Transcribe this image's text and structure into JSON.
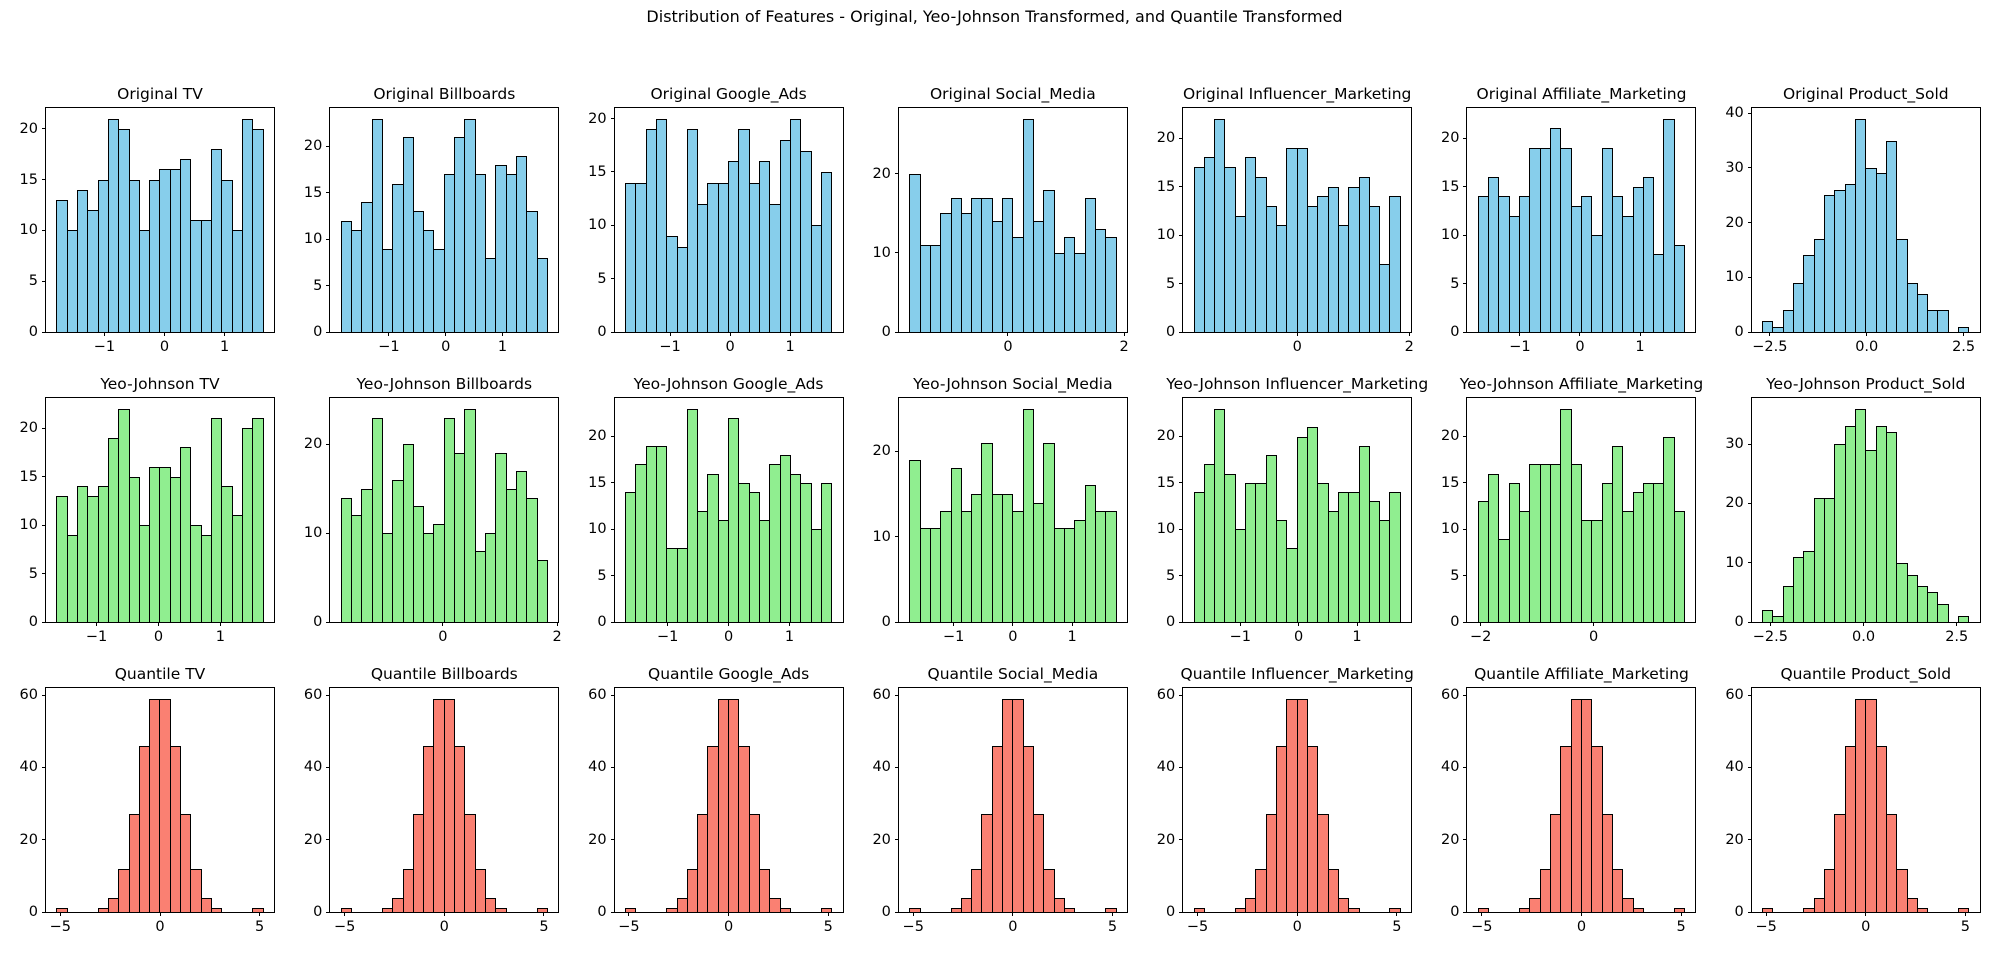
{
  "figure": {
    "suptitle": "Distribution of Features - Original, Yeo-Johnson Transformed, and Quantile Transformed",
    "background": "#ffffff",
    "edge_color": "#000000",
    "row_colors": {
      "original": "#87CEEB",
      "yeo_johnson": "#90EE90",
      "quantile": "#FA8072"
    }
  },
  "chart_data": [
    {
      "type": "bar",
      "title": "Original TV",
      "color": "#87CEEB",
      "x_start": -1.8,
      "x_end": 1.65,
      "ylim": [
        0,
        22.05
      ],
      "yticks": [
        0,
        5,
        10,
        15,
        20
      ],
      "xticks": [
        -1,
        0,
        1
      ],
      "xtick_labels": [
        "−1",
        "0",
        "1"
      ],
      "counts": [
        13,
        10,
        14,
        12,
        15,
        21,
        20,
        15,
        10,
        15,
        16,
        16,
        17,
        11,
        11,
        18,
        15,
        10,
        21,
        20
      ]
    },
    {
      "type": "bar",
      "title": "Original Billboards",
      "color": "#87CEEB",
      "x_start": -1.85,
      "x_end": 1.8,
      "ylim": [
        0,
        24.15
      ],
      "yticks": [
        0,
        5,
        10,
        15,
        20
      ],
      "xticks": [
        -1,
        0,
        1
      ],
      "xtick_labels": [
        "−1",
        "0",
        "1"
      ],
      "counts": [
        12,
        11,
        14,
        23,
        9,
        16,
        21,
        13,
        11,
        9,
        17,
        21,
        23,
        17,
        8,
        18,
        17,
        19,
        13,
        8
      ]
    },
    {
      "type": "bar",
      "title": "Original Google_Ads",
      "color": "#87CEEB",
      "x_start": -1.75,
      "x_end": 1.7,
      "ylim": [
        0,
        21.0
      ],
      "yticks": [
        0,
        5,
        10,
        15,
        20
      ],
      "xticks": [
        -1,
        0,
        1
      ],
      "xtick_labels": [
        "−1",
        "0",
        "1"
      ],
      "counts": [
        14,
        14,
        19,
        20,
        9,
        8,
        19,
        12,
        14,
        14,
        16,
        19,
        14,
        16,
        12,
        18,
        20,
        17,
        10,
        15
      ]
    },
    {
      "type": "bar",
      "title": "Original Social_Media",
      "color": "#87CEEB",
      "x_start": -1.7,
      "x_end": 1.87,
      "ylim": [
        0,
        28.35
      ],
      "yticks": [
        0,
        10,
        20
      ],
      "xticks": [
        0,
        2
      ],
      "xtick_labels": [
        "0",
        "2"
      ],
      "counts": [
        20,
        11,
        11,
        15,
        17,
        15,
        17,
        17,
        14,
        17,
        12,
        27,
        14,
        18,
        10,
        12,
        10,
        17,
        13,
        12
      ]
    },
    {
      "type": "bar",
      "title": "Original Influencer_Marketing",
      "color": "#87CEEB",
      "x_start": -1.85,
      "x_end": 1.85,
      "ylim": [
        0,
        23.1
      ],
      "yticks": [
        0,
        5,
        10,
        15,
        20
      ],
      "xticks": [
        0,
        2
      ],
      "xtick_labels": [
        "0",
        "2"
      ],
      "counts": [
        17,
        18,
        22,
        17,
        12,
        18,
        16,
        13,
        11,
        19,
        19,
        13,
        14,
        15,
        11,
        15,
        16,
        13,
        7,
        14
      ]
    },
    {
      "type": "bar",
      "title": "Original Affiliate_Marketing",
      "color": "#87CEEB",
      "x_start": -1.7,
      "x_end": 1.75,
      "ylim": [
        0,
        23.1
      ],
      "yticks": [
        0,
        5,
        10,
        15,
        20
      ],
      "xticks": [
        -1,
        0,
        1
      ],
      "xtick_labels": [
        "−1",
        "0",
        "1"
      ],
      "counts": [
        14,
        16,
        14,
        12,
        14,
        19,
        19,
        21,
        19,
        13,
        14,
        10,
        19,
        14,
        12,
        15,
        16,
        8,
        22,
        9
      ]
    },
    {
      "type": "bar",
      "title": "Original Product_Sold",
      "color": "#87CEEB",
      "x_start": -2.7,
      "x_end": 2.65,
      "ylim": [
        0,
        40.95
      ],
      "yticks": [
        0,
        10,
        20,
        30,
        40
      ],
      "xticks": [
        -2.5,
        0,
        2.5
      ],
      "xtick_labels": [
        "−2.5",
        "0.0",
        "2.5"
      ],
      "counts": [
        2,
        1,
        4,
        9,
        14,
        17,
        25,
        26,
        27,
        39,
        30,
        29,
        35,
        17,
        9,
        7,
        4,
        4,
        0,
        1
      ]
    },
    {
      "type": "bar",
      "title": "Yeo-Johnson TV",
      "color": "#90EE90",
      "x_start": -1.65,
      "x_end": 1.7,
      "ylim": [
        0,
        23.1
      ],
      "yticks": [
        0,
        5,
        10,
        15,
        20
      ],
      "xticks": [
        -1,
        0,
        1
      ],
      "xtick_labels": [
        "−1",
        "0",
        "1"
      ],
      "counts": [
        13,
        9,
        14,
        13,
        14,
        19,
        22,
        15,
        10,
        16,
        16,
        15,
        18,
        10,
        9,
        21,
        14,
        11,
        20,
        21
      ]
    },
    {
      "type": "bar",
      "title": "Yeo-Johnson Billboards",
      "color": "#90EE90",
      "x_start": -1.79,
      "x_end": 1.84,
      "ylim": [
        0,
        25.2
      ],
      "yticks": [
        0,
        10,
        20
      ],
      "xticks": [
        0,
        2
      ],
      "xtick_labels": [
        "0",
        "2"
      ],
      "counts": [
        14,
        12,
        15,
        23,
        10,
        16,
        20,
        13,
        10,
        11,
        23,
        19,
        24,
        8,
        10,
        19,
        15,
        17,
        14,
        7
      ]
    },
    {
      "type": "bar",
      "title": "Yeo-Johnson Google_Ads",
      "color": "#90EE90",
      "x_start": -1.7,
      "x_end": 1.7,
      "ylim": [
        0,
        24.15
      ],
      "yticks": [
        0,
        5,
        10,
        15,
        20
      ],
      "xticks": [
        -1,
        0,
        1
      ],
      "xtick_labels": [
        "−1",
        "0",
        "1"
      ],
      "counts": [
        14,
        17,
        19,
        19,
        8,
        8,
        23,
        12,
        16,
        11,
        22,
        15,
        14,
        11,
        17,
        18,
        16,
        15,
        10,
        15
      ]
    },
    {
      "type": "bar",
      "title": "Yeo-Johnson Social_Media",
      "color": "#90EE90",
      "x_start": -1.75,
      "x_end": 1.75,
      "ylim": [
        0,
        26.25
      ],
      "yticks": [
        0,
        10,
        20
      ],
      "xticks": [
        -1,
        0,
        1
      ],
      "xtick_labels": [
        "−1",
        "0",
        "1"
      ],
      "counts": [
        19,
        11,
        11,
        13,
        18,
        13,
        15,
        21,
        15,
        15,
        13,
        25,
        14,
        21,
        11,
        11,
        12,
        16,
        13,
        13
      ]
    },
    {
      "type": "bar",
      "title": "Yeo-Johnson Influencer_Marketing",
      "color": "#90EE90",
      "x_start": -1.8,
      "x_end": 1.75,
      "ylim": [
        0,
        24.15
      ],
      "yticks": [
        0,
        5,
        10,
        15,
        20
      ],
      "xticks": [
        -1,
        0,
        1
      ],
      "xtick_labels": [
        "−1",
        "0",
        "1"
      ],
      "counts": [
        14,
        17,
        23,
        16,
        10,
        15,
        15,
        18,
        11,
        8,
        20,
        21,
        15,
        12,
        14,
        14,
        19,
        13,
        11,
        14
      ]
    },
    {
      "type": "bar",
      "title": "Yeo-Johnson Affiliate_Marketing",
      "color": "#90EE90",
      "x_start": -2.05,
      "x_end": 1.62,
      "ylim": [
        0,
        24.15
      ],
      "yticks": [
        0,
        5,
        10,
        15,
        20
      ],
      "xticks": [
        -2,
        0
      ],
      "xtick_labels": [
        "−2",
        "0"
      ],
      "counts": [
        13,
        16,
        9,
        15,
        12,
        17,
        17,
        17,
        23,
        17,
        11,
        11,
        15,
        19,
        12,
        14,
        15,
        15,
        20,
        12
      ]
    },
    {
      "type": "bar",
      "title": "Yeo-Johnson Product_Sold",
      "color": "#90EE90",
      "x_start": -2.72,
      "x_end": 2.84,
      "ylim": [
        0,
        37.8
      ],
      "yticks": [
        0,
        10,
        20,
        30
      ],
      "xticks": [
        -2.5,
        0,
        2.5
      ],
      "xtick_labels": [
        "−2.5",
        "0.0",
        "2.5"
      ],
      "counts": [
        2,
        1,
        6,
        11,
        12,
        21,
        21,
        30,
        33,
        36,
        29,
        33,
        32,
        10,
        8,
        6,
        5,
        3,
        0,
        1
      ]
    },
    {
      "type": "bar",
      "title": "Quantile TV",
      "color": "#FA8072",
      "x_start": -5.2,
      "x_end": 5.2,
      "ylim": [
        0,
        61.95
      ],
      "yticks": [
        0,
        20,
        40,
        60
      ],
      "xticks": [
        -5,
        0,
        5
      ],
      "xtick_labels": [
        "−5",
        "0",
        "5"
      ],
      "counts": [
        1,
        0,
        0,
        0,
        1,
        4,
        12,
        27,
        46,
        59,
        59,
        46,
        27,
        12,
        4,
        1,
        0,
        0,
        0,
        1
      ]
    },
    {
      "type": "bar",
      "title": "Quantile Billboards",
      "color": "#FA8072",
      "x_start": -5.2,
      "x_end": 5.2,
      "ylim": [
        0,
        61.95
      ],
      "yticks": [
        0,
        20,
        40,
        60
      ],
      "xticks": [
        -5,
        0,
        5
      ],
      "xtick_labels": [
        "−5",
        "0",
        "5"
      ],
      "counts": [
        1,
        0,
        0,
        0,
        1,
        4,
        12,
        27,
        46,
        59,
        59,
        46,
        27,
        12,
        4,
        1,
        0,
        0,
        0,
        1
      ]
    },
    {
      "type": "bar",
      "title": "Quantile Google_Ads",
      "color": "#FA8072",
      "x_start": -5.2,
      "x_end": 5.2,
      "ylim": [
        0,
        61.95
      ],
      "yticks": [
        0,
        20,
        40,
        60
      ],
      "xticks": [
        -5,
        0,
        5
      ],
      "xtick_labels": [
        "−5",
        "0",
        "5"
      ],
      "counts": [
        1,
        0,
        0,
        0,
        1,
        4,
        12,
        27,
        46,
        59,
        59,
        46,
        27,
        12,
        4,
        1,
        0,
        0,
        0,
        1
      ]
    },
    {
      "type": "bar",
      "title": "Quantile Social_Media",
      "color": "#FA8072",
      "x_start": -5.2,
      "x_end": 5.2,
      "ylim": [
        0,
        61.95
      ],
      "yticks": [
        0,
        20,
        40,
        60
      ],
      "xticks": [
        -5,
        0,
        5
      ],
      "xtick_labels": [
        "−5",
        "0",
        "5"
      ],
      "counts": [
        1,
        0,
        0,
        0,
        1,
        4,
        12,
        27,
        46,
        59,
        59,
        46,
        27,
        12,
        4,
        1,
        0,
        0,
        0,
        1
      ]
    },
    {
      "type": "bar",
      "title": "Quantile Influencer_Marketing",
      "color": "#FA8072",
      "x_start": -5.2,
      "x_end": 5.2,
      "ylim": [
        0,
        61.95
      ],
      "yticks": [
        0,
        20,
        40,
        60
      ],
      "xticks": [
        -5,
        0,
        5
      ],
      "xtick_labels": [
        "−5",
        "0",
        "5"
      ],
      "counts": [
        1,
        0,
        0,
        0,
        1,
        4,
        12,
        27,
        46,
        59,
        59,
        46,
        27,
        12,
        4,
        1,
        0,
        0,
        0,
        1
      ]
    },
    {
      "type": "bar",
      "title": "Quantile Affiliate_Marketing",
      "color": "#FA8072",
      "x_start": -5.2,
      "x_end": 5.2,
      "ylim": [
        0,
        61.95
      ],
      "yticks": [
        0,
        20,
        40,
        60
      ],
      "xticks": [
        -5,
        0,
        5
      ],
      "xtick_labels": [
        "−5",
        "0",
        "5"
      ],
      "counts": [
        1,
        0,
        0,
        0,
        1,
        4,
        12,
        27,
        46,
        59,
        59,
        46,
        27,
        12,
        4,
        1,
        0,
        0,
        0,
        1
      ]
    },
    {
      "type": "bar",
      "title": "Quantile Product_Sold",
      "color": "#FA8072",
      "x_start": -5.2,
      "x_end": 5.2,
      "ylim": [
        0,
        61.95
      ],
      "yticks": [
        0,
        20,
        40,
        60
      ],
      "xticks": [
        -5,
        0,
        5
      ],
      "xtick_labels": [
        "−5",
        "0",
        "5"
      ],
      "counts": [
        1,
        0,
        0,
        0,
        1,
        4,
        12,
        27,
        46,
        59,
        59,
        46,
        27,
        12,
        4,
        1,
        0,
        0,
        0,
        1
      ]
    }
  ]
}
